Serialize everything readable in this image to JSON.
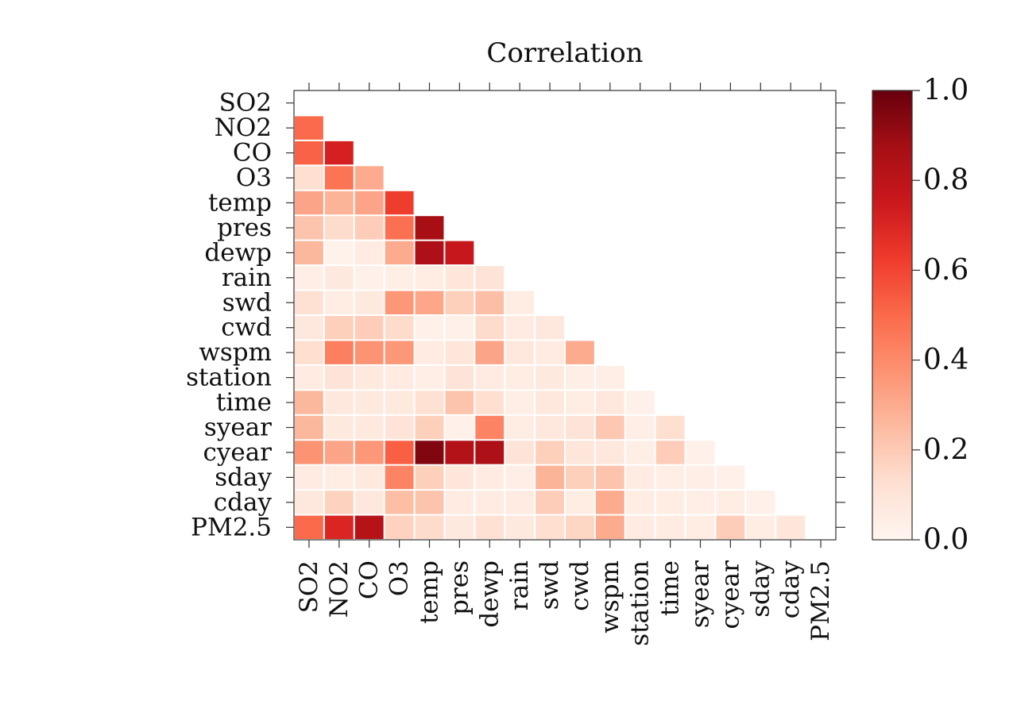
{
  "chart_data": {
    "type": "heatmap",
    "title": "Correlation",
    "variables": [
      "SO2",
      "NO2",
      "CO",
      "O3",
      "temp",
      "pres",
      "dewp",
      "rain",
      "swd",
      "cwd",
      "wspm",
      "station",
      "time",
      "syear",
      "cyear",
      "sday",
      "cday",
      "PM2.5"
    ],
    "lower_triangle": [
      [],
      [
        0.5
      ],
      [
        0.52,
        0.72
      ],
      [
        0.13,
        0.47,
        0.3
      ],
      [
        0.32,
        0.27,
        0.32,
        0.62
      ],
      [
        0.22,
        0.14,
        0.19,
        0.48,
        0.87
      ],
      [
        0.26,
        0.02,
        0.06,
        0.3,
        0.85,
        0.77
      ],
      [
        0.04,
        0.07,
        0.03,
        0.04,
        0.05,
        0.09,
        0.1
      ],
      [
        0.12,
        0.05,
        0.07,
        0.36,
        0.31,
        0.18,
        0.24,
        0.05
      ],
      [
        0.08,
        0.18,
        0.19,
        0.14,
        0.03,
        0.03,
        0.14,
        0.06,
        0.08
      ],
      [
        0.13,
        0.43,
        0.37,
        0.36,
        0.06,
        0.09,
        0.32,
        0.08,
        0.06,
        0.3
      ],
      [
        0.06,
        0.1,
        0.07,
        0.06,
        0.04,
        0.1,
        0.06,
        0.05,
        0.07,
        0.04,
        0.04
      ],
      [
        0.26,
        0.08,
        0.07,
        0.07,
        0.12,
        0.22,
        0.13,
        0.04,
        0.08,
        0.05,
        0.08,
        0.03
      ],
      [
        0.26,
        0.07,
        0.07,
        0.1,
        0.18,
        0.03,
        0.42,
        0.05,
        0.08,
        0.1,
        0.21,
        0.04,
        0.13
      ],
      [
        0.37,
        0.32,
        0.36,
        0.53,
        0.95,
        0.83,
        0.85,
        0.1,
        0.18,
        0.09,
        0.08,
        0.04,
        0.19,
        0.03
      ],
      [
        0.06,
        0.05,
        0.07,
        0.42,
        0.18,
        0.09,
        0.06,
        0.04,
        0.27,
        0.18,
        0.22,
        0.06,
        0.04,
        0.04,
        0.03
      ],
      [
        0.08,
        0.17,
        0.08,
        0.24,
        0.22,
        0.06,
        0.06,
        0.06,
        0.19,
        0.05,
        0.3,
        0.05,
        0.05,
        0.04,
        0.05,
        0.03
      ],
      [
        0.5,
        0.7,
        0.82,
        0.17,
        0.14,
        0.07,
        0.12,
        0.07,
        0.13,
        0.16,
        0.3,
        0.06,
        0.06,
        0.05,
        0.19,
        0.05,
        0.09
      ]
    ],
    "colorbar": {
      "min": 0.0,
      "max": 1.0,
      "ticks": [
        "0.0",
        "0.2",
        "0.4",
        "0.6",
        "0.8",
        "1.0"
      ],
      "palette": [
        "#fff5f0",
        "#fee0d2",
        "#fcbba1",
        "#fc9272",
        "#fb6a4a",
        "#ef3b2c",
        "#cb181d",
        "#a50f15",
        "#67000d"
      ]
    }
  }
}
